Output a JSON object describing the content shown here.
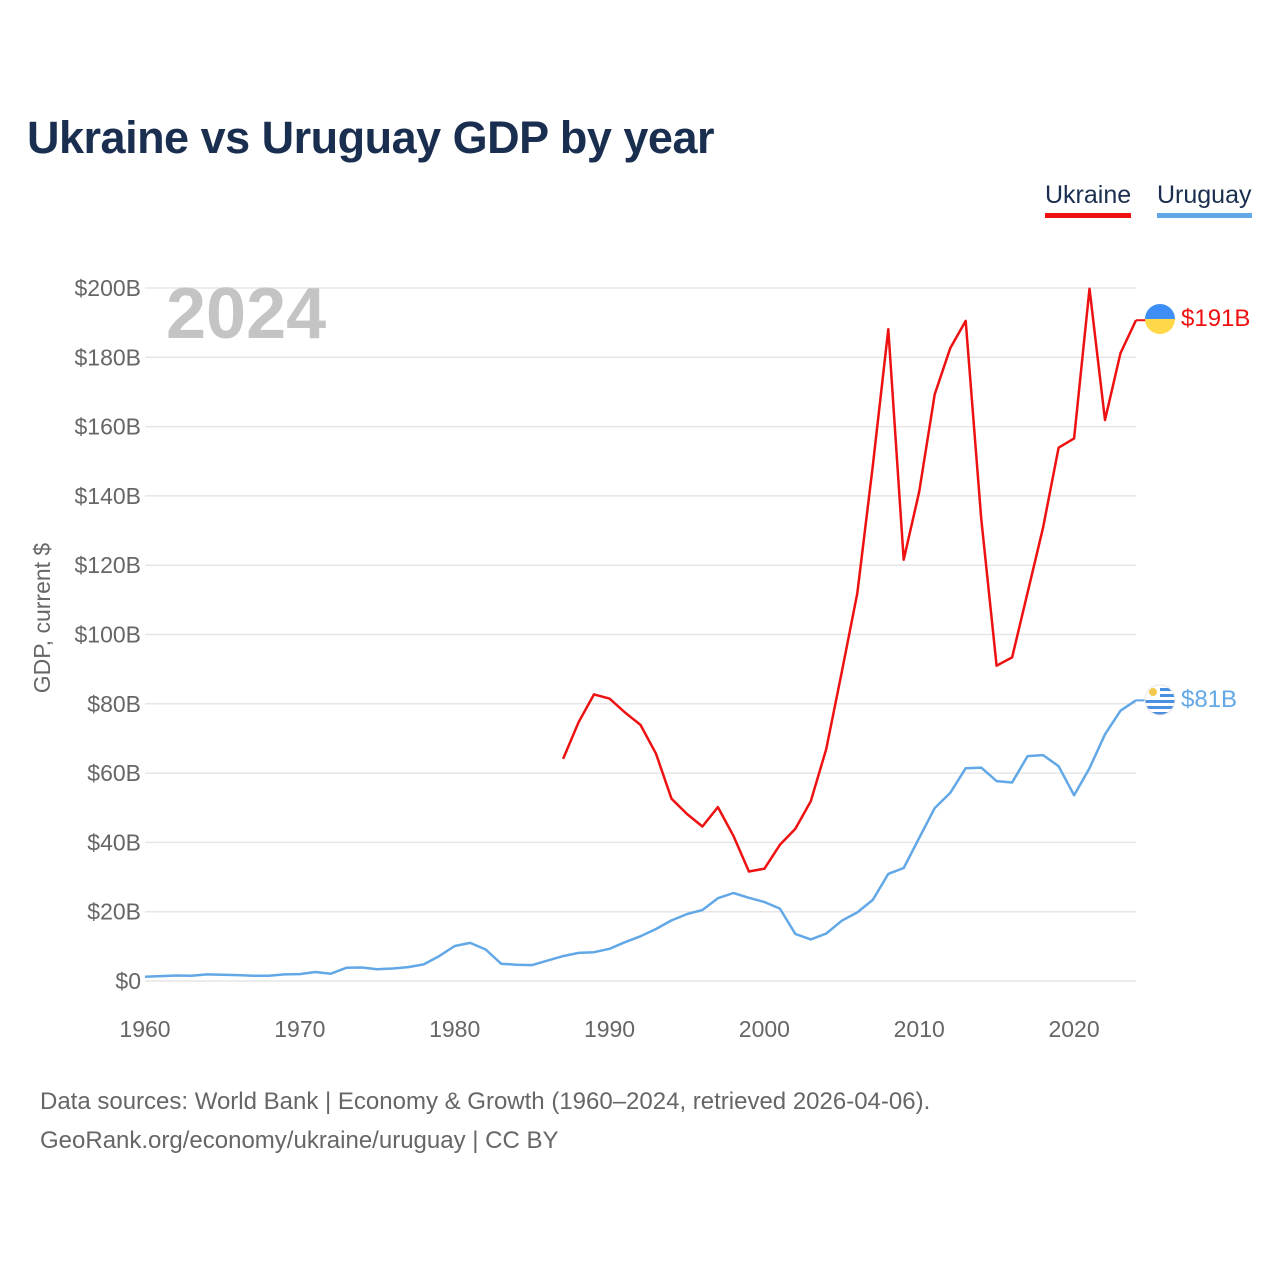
{
  "title": "Ukraine vs Uruguay GDP by year",
  "legend": {
    "ukraine": "Ukraine",
    "uruguay": "Uruguay"
  },
  "year_label": "2024",
  "sources": {
    "line1": "Data sources: World Bank | Economy & Growth (1960–2024, retrieved 2026-04-06).",
    "line2": "GeoRank.org/economy/ukraine/uruguay | CC BY"
  },
  "colors": {
    "ukraine": "#ee1111",
    "uruguay": "#62a8e6",
    "title": "#1a2e4f",
    "axis_text": "#666666",
    "grid": "#e6e6e6",
    "year": "#c4c4c4"
  },
  "chart_data": {
    "type": "line",
    "ylabel": "GDP, current $",
    "xlabel": "",
    "xlim": [
      1960,
      2024
    ],
    "ylim": [
      0,
      200
    ],
    "y_unit": "billion USD",
    "y_ticks": [
      0,
      20,
      40,
      60,
      80,
      100,
      120,
      140,
      160,
      180,
      200
    ],
    "y_tick_labels": [
      "$0",
      "$20B",
      "$40B",
      "$60B",
      "$80B",
      "$100B",
      "$120B",
      "$140B",
      "$160B",
      "$180B",
      "$200B"
    ],
    "x_ticks": [
      1960,
      1970,
      1980,
      1990,
      2000,
      2010,
      2020
    ],
    "x_tick_labels": [
      "1960",
      "1970",
      "1980",
      "1990",
      "2000",
      "2010",
      "2020"
    ],
    "series": [
      {
        "name": "Ukraine",
        "key": "ukraine",
        "end_label": "$191B",
        "x": [
          1987,
          1988,
          1989,
          1990,
          1991,
          1992,
          1993,
          1994,
          1995,
          1996,
          1997,
          1998,
          1999,
          2000,
          2001,
          2002,
          2003,
          2004,
          2005,
          2006,
          2007,
          2008,
          2009,
          2010,
          2011,
          2012,
          2013,
          2014,
          2015,
          2016,
          2017,
          2018,
          2019,
          2020,
          2021,
          2022,
          2023,
          2024
        ],
        "values": [
          64.1,
          74.7,
          82.7,
          81.5,
          77.5,
          73.9,
          65.6,
          52.6,
          48.2,
          44.6,
          50.2,
          41.9,
          31.6,
          32.4,
          39.3,
          43.9,
          51.9,
          67.0,
          89.2,
          111.9,
          148.7,
          188.1,
          121.6,
          141.2,
          169.3,
          182.6,
          190.5,
          133.5,
          91.0,
          93.4,
          112.1,
          130.9,
          153.9,
          156.6,
          199.8,
          161.9,
          181.2,
          190.7
        ]
      },
      {
        "name": "Uruguay",
        "key": "uruguay",
        "end_label": "$81B",
        "x": [
          1960,
          1961,
          1962,
          1963,
          1964,
          1965,
          1966,
          1967,
          1968,
          1969,
          1970,
          1971,
          1972,
          1973,
          1974,
          1975,
          1976,
          1977,
          1978,
          1979,
          1980,
          1981,
          1982,
          1983,
          1984,
          1985,
          1986,
          1987,
          1988,
          1989,
          1990,
          1991,
          1992,
          1993,
          1994,
          1995,
          1996,
          1997,
          1998,
          1999,
          2000,
          2001,
          2002,
          2003,
          2004,
          2005,
          2006,
          2007,
          2008,
          2009,
          2010,
          2011,
          2012,
          2013,
          2014,
          2015,
          2016,
          2017,
          2018,
          2019,
          2020,
          2021,
          2022,
          2023,
          2024
        ],
        "values": [
          1.2,
          1.4,
          1.6,
          1.5,
          1.9,
          1.8,
          1.7,
          1.5,
          1.5,
          1.9,
          2.0,
          2.6,
          2.1,
          3.8,
          3.9,
          3.4,
          3.6,
          4.0,
          4.8,
          7.2,
          10.1,
          11.0,
          9.1,
          5.0,
          4.7,
          4.6,
          5.9,
          7.2,
          8.1,
          8.3,
          9.3,
          11.2,
          12.9,
          15.0,
          17.5,
          19.3,
          20.5,
          23.9,
          25.4,
          24.0,
          22.8,
          20.9,
          13.6,
          12.0,
          13.7,
          17.4,
          19.8,
          23.4,
          30.9,
          32.6,
          41.3,
          49.9,
          54.3,
          61.4,
          61.6,
          57.7,
          57.3,
          64.9,
          65.2,
          62.0,
          53.6,
          61.4,
          71.2,
          78.0,
          81.0
        ]
      }
    ]
  }
}
